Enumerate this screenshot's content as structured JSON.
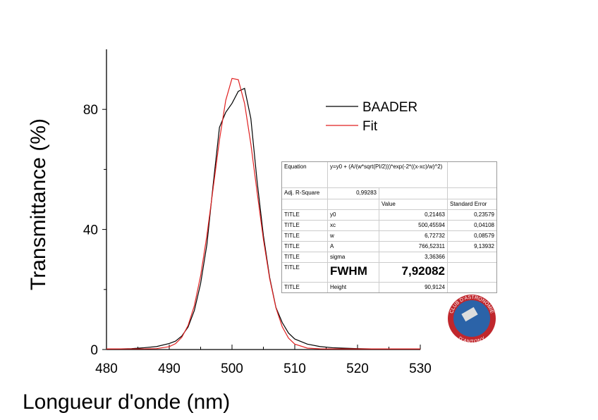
{
  "chart_data": {
    "type": "line",
    "x": [
      480,
      484,
      486,
      488,
      490,
      491,
      492,
      493,
      494,
      495,
      496,
      497,
      498,
      499,
      500,
      501,
      502,
      503,
      504,
      505,
      506,
      507,
      508,
      509,
      510,
      512,
      514,
      516,
      520,
      525,
      530
    ],
    "series": [
      {
        "name": "BAADER",
        "color": "#000000",
        "values": [
          0.1,
          0.3,
          0.6,
          1.0,
          2.0,
          2.8,
          4.5,
          7.5,
          13,
          22,
          35,
          55,
          74,
          79,
          82,
          86,
          87,
          77,
          56,
          38,
          24,
          14,
          9,
          5.5,
          3.5,
          1.8,
          1.0,
          0.6,
          0.3,
          0.1,
          0.05
        ]
      },
      {
        "name": "Fit",
        "color": "#e02020",
        "values": [
          0.21,
          0.22,
          0.22,
          0.31,
          0.95,
          1.96,
          4.07,
          8.0,
          14.6,
          24.6,
          38.0,
          53.8,
          69.8,
          83.0,
          90.3,
          89.9,
          82.0,
          68.5,
          52.4,
          36.7,
          23.6,
          13.9,
          7.6,
          3.8,
          1.8,
          0.47,
          0.24,
          0.21,
          0.21,
          0.21,
          0.21
        ]
      }
    ],
    "xlabel": "Longueur d'onde (nm)",
    "ylabel": "Transmittance (%)",
    "xlim": [
      480,
      530
    ],
    "ylim": [
      0,
      100
    ],
    "xticks": [
      480,
      490,
      500,
      510,
      520,
      530
    ],
    "yticks": [
      0,
      40,
      80
    ],
    "xminorticks": [
      485,
      495,
      505,
      515,
      525
    ],
    "yminorticks": [
      20,
      60
    ],
    "legend": "top-right"
  },
  "table": {
    "equation": {
      "label": "Equation",
      "value": "y=y0 + (A/(w*sqrt(PI/2)))*exp(-2*((x-xc)/w)^2)"
    },
    "adj_r_square": {
      "label": "Adj. R-Square",
      "value": "0,99283"
    },
    "columns": [
      "Value",
      "Standard Error"
    ],
    "rows": [
      [
        "TITLE",
        "y0",
        "0,21463",
        "0,23579"
      ],
      [
        "TITLE",
        "xc",
        "500,45594",
        "0,04108"
      ],
      [
        "TITLE",
        "w",
        "6,72732",
        "0,08579"
      ],
      [
        "TITLE",
        "A",
        "766,52311",
        "9,13932"
      ],
      [
        "TITLE",
        "sigma",
        "3,36366"
      ],
      [
        "TITLE",
        "FWHM",
        "7,92082"
      ],
      [
        "TITLE",
        "Height",
        "90,9124"
      ]
    ]
  },
  "logo": {
    "top_text": "CLUB D'ASTRONOMIE",
    "bottom_text": "D'ANTONY"
  }
}
